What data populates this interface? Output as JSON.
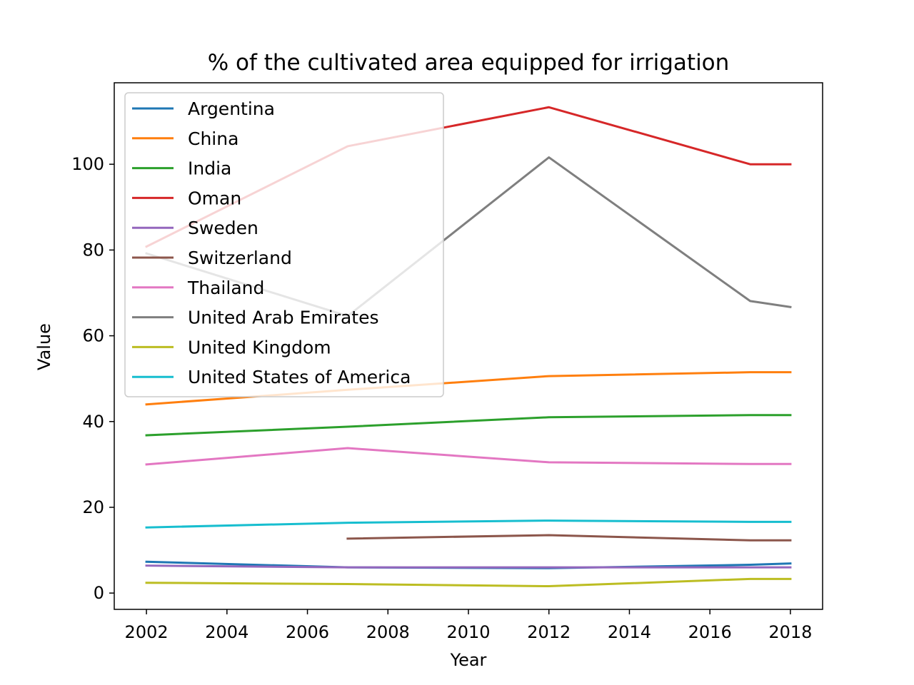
{
  "chart_data": {
    "type": "line",
    "title": "% of the cultivated area equipped for irrigation",
    "xlabel": "Year",
    "ylabel": "Value",
    "xlim": [
      2001.2,
      2018.8
    ],
    "ylim": [
      -3.8,
      119
    ],
    "x_ticks": [
      2002,
      2004,
      2006,
      2008,
      2010,
      2012,
      2014,
      2016,
      2018
    ],
    "y_ticks": [
      0,
      20,
      40,
      60,
      80,
      100
    ],
    "x": [
      2002,
      2007,
      2012,
      2017,
      2018
    ],
    "legend_position": "upper left",
    "grid": false,
    "series": [
      {
        "name": "Argentina",
        "color": "#1f77b4",
        "values": [
          7.3,
          6.0,
          5.8,
          6.6,
          6.9
        ]
      },
      {
        "name": "China",
        "color": "#ff7f0e",
        "values": [
          44.0,
          47.4,
          50.6,
          51.5,
          51.5
        ]
      },
      {
        "name": "India",
        "color": "#2ca02c",
        "values": [
          36.8,
          38.8,
          41.0,
          41.5,
          41.5
        ]
      },
      {
        "name": "Oman",
        "color": "#d62728",
        "values": [
          80.8,
          104.2,
          113.3,
          100.0,
          100.0
        ]
      },
      {
        "name": "Sweden",
        "color": "#9467bd",
        "values": [
          6.4,
          6.0,
          6.0,
          6.0,
          6.0
        ]
      },
      {
        "name": "Switzerland",
        "color": "#8c564b",
        "values": [
          null,
          12.7,
          13.5,
          12.3,
          12.3
        ]
      },
      {
        "name": "Thailand",
        "color": "#e377c2",
        "values": [
          30.0,
          33.8,
          30.5,
          30.1,
          30.1
        ]
      },
      {
        "name": "United Arab Emirates",
        "color": "#7f7f7f",
        "values": [
          79.2,
          64.6,
          101.6,
          68.1,
          66.7
        ]
      },
      {
        "name": "United Kingdom",
        "color": "#bcbd22",
        "values": [
          2.4,
          2.1,
          1.6,
          3.3,
          3.3
        ]
      },
      {
        "name": "United States of America",
        "color": "#17becf",
        "values": [
          15.3,
          16.4,
          16.9,
          16.6,
          16.6
        ]
      }
    ]
  }
}
